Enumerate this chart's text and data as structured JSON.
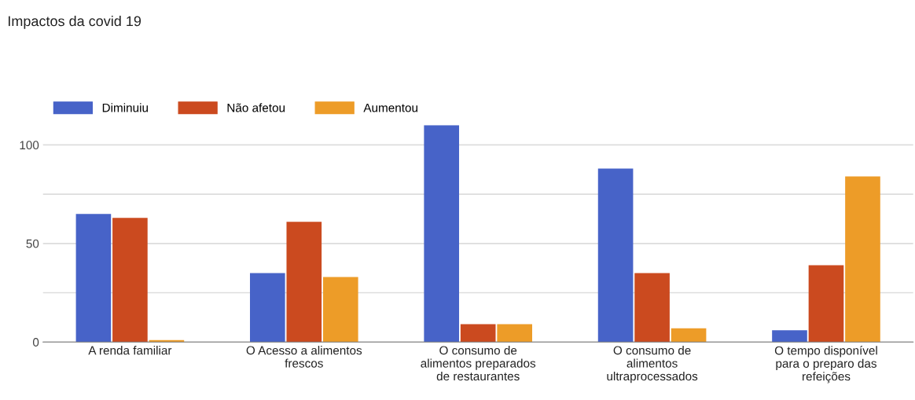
{
  "chart_data": {
    "type": "bar",
    "title": "Impactos da covid 19",
    "categories": [
      "A renda familiar",
      "O Acesso a alimentos\nfrescos",
      "O consumo de\nalimentos preparados\nde restaurantes",
      "O consumo de\nalimentos\nultraprocessados",
      "O tempo disponível\npara o preparo das\nrefeições"
    ],
    "series": [
      {
        "name": "Diminuiu",
        "color": "#4763c8",
        "values": [
          65,
          35,
          110,
          88,
          6
        ]
      },
      {
        "name": "Não afetou",
        "color": "#cb4a1f",
        "values": [
          63,
          61,
          9,
          35,
          39
        ]
      },
      {
        "name": "Aumentou",
        "color": "#ed9c28",
        "values": [
          1,
          33,
          9,
          7,
          84
        ]
      }
    ],
    "ylim": [
      0,
      110
    ],
    "yticks": [
      0,
      {
        "value": 25,
        "label": null
      },
      50,
      {
        "value": 75,
        "label": null
      },
      100
    ],
    "grid": "y",
    "legend": "top left"
  }
}
